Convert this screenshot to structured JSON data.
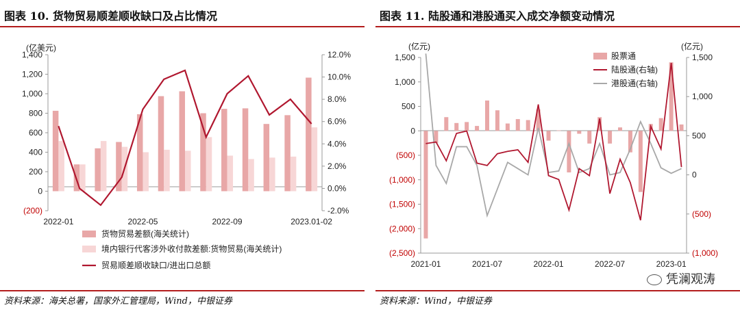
{
  "left": {
    "title": "图表 10. 货物贸易顺差顺收缺口及占比情况",
    "source": "资料来源：海关总署，国家外汇管理局，Wind，中银证券",
    "chart_data": {
      "type": "bar+line",
      "y_left_unit": "(亿美元)",
      "y_left_ticks": [
        "1,400",
        "1,200",
        "1,000",
        "800",
        "600",
        "400",
        "200",
        "0",
        "(200)"
      ],
      "y_left_values": [
        1400,
        1200,
        1000,
        800,
        600,
        400,
        200,
        0,
        -200
      ],
      "y_right_ticks": [
        "12.0%",
        "10.0%",
        "8.0%",
        "6.0%",
        "4.0%",
        "2.0%",
        "0.0%",
        "-2.0%"
      ],
      "y_right_values": [
        12,
        10,
        8,
        6,
        4,
        2,
        0,
        -2
      ],
      "ylim_left": [
        -200,
        1400
      ],
      "ylim_right": [
        -2,
        12
      ],
      "x_tick_labels": [
        "2022-01",
        "2022-05",
        "2022-09",
        "2023.01-02"
      ],
      "x_tick_positions": [
        0,
        4,
        8,
        12
      ],
      "categories": [
        "2022-01",
        "2022-02",
        "2022-03",
        "2022-04",
        "2022-05",
        "2022-06",
        "2022-07",
        "2022-08",
        "2022-09",
        "2022-10",
        "2022-11",
        "2022-12",
        "2023.01-02"
      ],
      "series": [
        {
          "name": "货物贸易差额(海关统计)",
          "kind": "bar",
          "color": "#e8a7a7",
          "axis": "left",
          "values": [
            825,
            275,
            440,
            505,
            790,
            975,
            1025,
            800,
            845,
            850,
            690,
            780,
            1165
          ]
        },
        {
          "name": "境内银行代客涉外收付款差额:货物贸易(海关统计)",
          "kind": "bar",
          "color": "#f7d6d6",
          "axis": "left",
          "values": [
            515,
            275,
            515,
            455,
            400,
            425,
            415,
            555,
            365,
            330,
            345,
            355,
            655
          ]
        },
        {
          "name": "贸易顺差顺收缺口/进出口总额",
          "kind": "line",
          "color": "#b0172f",
          "axis": "right",
          "values": [
            5.6,
            0.0,
            -1.5,
            1.0,
            7.1,
            9.8,
            10.6,
            4.6,
            8.5,
            10.1,
            6.6,
            8.0,
            5.8
          ]
        }
      ]
    }
  },
  "right": {
    "title": "图表 11. 陆股通和港股通买入成交净额变动情况",
    "source": "资料来源：Wind，中银证券",
    "watermark": "凭澜观涛",
    "chart_data": {
      "type": "bar+line",
      "y_left_unit": "(亿元)",
      "y_right_unit": "(亿元)",
      "y_left_ticks": [
        "1,500",
        "1,000",
        "500",
        "0",
        "(500)",
        "(1,000)",
        "(1,500)",
        "(2,000)",
        "(2,500)"
      ],
      "y_left_values": [
        1500,
        1000,
        500,
        0,
        -500,
        -1000,
        -1500,
        -2000,
        -2500
      ],
      "y_right_ticks": [
        "1,500",
        "1,000",
        "500",
        "0",
        "(500)",
        "(1,000)"
      ],
      "y_right_values": [
        1500,
        1000,
        500,
        0,
        -500,
        -1000
      ],
      "ylim_left": [
        -2500,
        1500
      ],
      "ylim_right": [
        -1000,
        1500
      ],
      "x_tick_labels": [
        "2021-01",
        "2021-07",
        "2022-01",
        "2022-07",
        "2023-01"
      ],
      "x_tick_positions": [
        0,
        6,
        12,
        18,
        24
      ],
      "categories": [
        "2021-01",
        "2021-02",
        "2021-03",
        "2021-04",
        "2021-05",
        "2021-06",
        "2021-07",
        "2021-08",
        "2021-09",
        "2021-10",
        "2021-11",
        "2021-12",
        "2022-01",
        "2022-02",
        "2022-03",
        "2022-04",
        "2022-05",
        "2022-06",
        "2022-07",
        "2022-08",
        "2022-09",
        "2022-10",
        "2022-11",
        "2022-12",
        "2023-01",
        "2023-02"
      ],
      "legend": [
        "股票通",
        "陆股通(右轴)",
        "港股通(右轴)"
      ],
      "series": [
        {
          "name": "股票通",
          "kind": "bar",
          "color": "#e8a7a7",
          "axis": "left",
          "values": [
            -2200,
            -250,
            280,
            160,
            180,
            100,
            620,
            420,
            150,
            240,
            220,
            440,
            -200,
            10,
            -850,
            -60,
            -260,
            280,
            -260,
            70,
            -440,
            -1250,
            140,
            260,
            1400,
            130
          ]
        },
        {
          "name": "陆股通(右轴)",
          "kind": "line",
          "color": "#b0172f",
          "axis": "right",
          "values": [
            400,
            420,
            180,
            530,
            560,
            150,
            120,
            270,
            300,
            320,
            160,
            900,
            -10,
            -60,
            -450,
            80,
            -10,
            720,
            -240,
            200,
            -100,
            -580,
            620,
            330,
            1430,
            100
          ]
        },
        {
          "name": "港股通(右轴)",
          "kind": "line",
          "color": "#a8a8a8",
          "axis": "right",
          "values": [
            1550,
            120,
            -110,
            360,
            360,
            120,
            -520,
            -180,
            160,
            80,
            0,
            600,
            30,
            50,
            400,
            30,
            80,
            400,
            0,
            30,
            330,
            680,
            400,
            90,
            20,
            80
          ]
        }
      ]
    }
  }
}
